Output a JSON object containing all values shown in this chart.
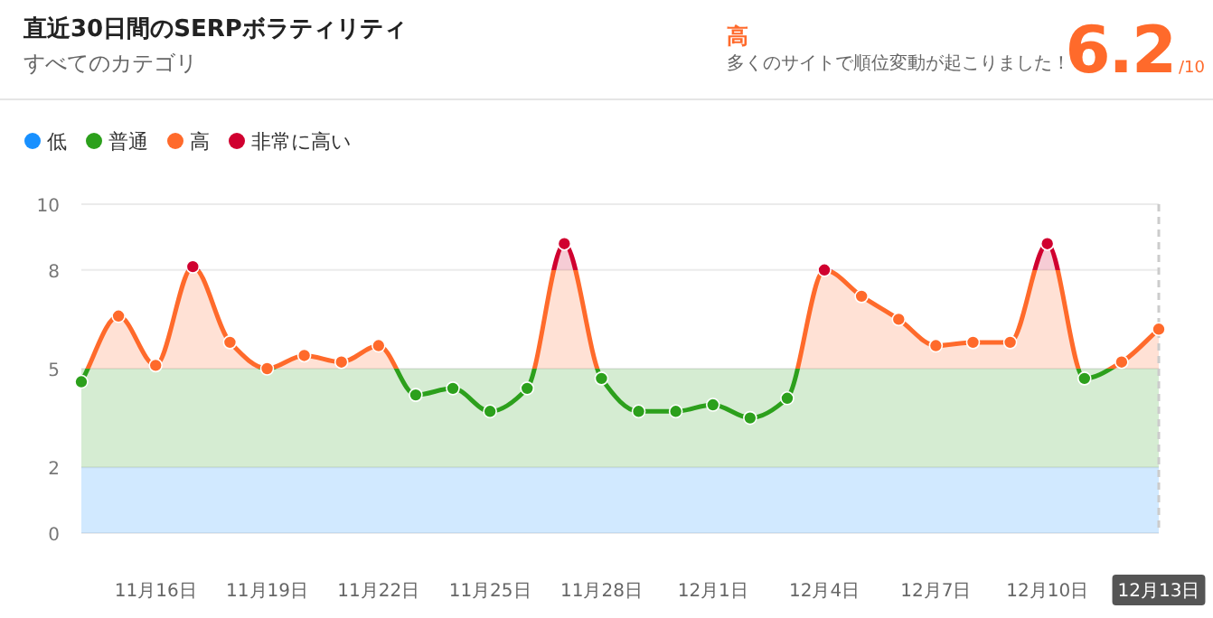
{
  "chart_data": {
    "type": "line",
    "title": "直近30日間のSERPボラティリティ",
    "subtitle": "すべてのカテゴリ",
    "annotations": [
      "高",
      "多くのサイトで順位変動が起こりました！",
      "6.2",
      "/10"
    ],
    "x": [
      "--11-14",
      "--11-15",
      "--11-16",
      "--11-17",
      "--11-18",
      "--11-19",
      "--11-20",
      "--11-21",
      "--11-22",
      "--11-23",
      "--11-24",
      "--11-25",
      "--11-26",
      "--11-27",
      "--11-28",
      "--11-29",
      "--11-30",
      "--12-01",
      "--12-02",
      "--12-03",
      "--12-04",
      "--12-05",
      "--12-06",
      "--12-07",
      "--12-08",
      "--12-09",
      "--12-10",
      "--12-11",
      "--12-12",
      "--12-13"
    ],
    "series": [
      {
        "values": [
          4.6,
          6.6,
          5.1,
          8.1,
          5.8,
          5.0,
          5.4,
          5.2,
          5.7,
          4.2,
          4.4,
          3.7,
          4.4,
          8.8,
          4.7,
          3.7,
          3.7,
          3.9,
          3.5,
          4.1,
          8.0,
          7.2,
          6.5,
          5.7,
          5.8,
          5.8,
          8.8,
          4.7,
          5.2,
          6.2
        ]
      }
    ],
    "bands": [
      {
        "axis": "y",
        "from": 0,
        "to": 2,
        "label": "低",
        "color": "#1890ff"
      },
      {
        "axis": "y",
        "from": 2,
        "to": 5,
        "label": "普通",
        "color": "#2ca01c"
      },
      {
        "axis": "y",
        "from": 5,
        "to": 8,
        "label": "高",
        "color": "#ff6a2b"
      },
      {
        "axis": "y",
        "from": 8,
        "to": 10,
        "label": "非常に高い",
        "color": "#d0002f"
      }
    ],
    "ref_lines": [
      {
        "axis": "x",
        "value": "--12-13",
        "color": "#cccccc",
        "line_style": "dashed"
      }
    ],
    "xlim": [
      "--11-14",
      "--12-13"
    ],
    "xticks": [
      {
        "value": "--11-16",
        "label": "11月16日"
      },
      {
        "value": "--11-19",
        "label": "11月19日"
      },
      {
        "value": "--11-22",
        "label": "11月22日"
      },
      {
        "value": "--11-25",
        "label": "11月25日"
      },
      {
        "value": "--11-28",
        "label": "11月28日"
      },
      {
        "value": "--12-01",
        "label": "12月1日"
      },
      {
        "value": "--12-04",
        "label": "12月4日"
      },
      {
        "value": "--12-07",
        "label": "12月7日"
      },
      {
        "value": "--12-10",
        "label": "12月10日"
      },
      {
        "value": "--12-13",
        "label": "12月13日"
      }
    ],
    "ylim": [
      0,
      10
    ],
    "yticks": [
      0,
      2,
      5,
      8,
      10
    ],
    "grid": "y",
    "legend": "top left",
    "marker": "circle",
    "line_style": "solid"
  }
}
